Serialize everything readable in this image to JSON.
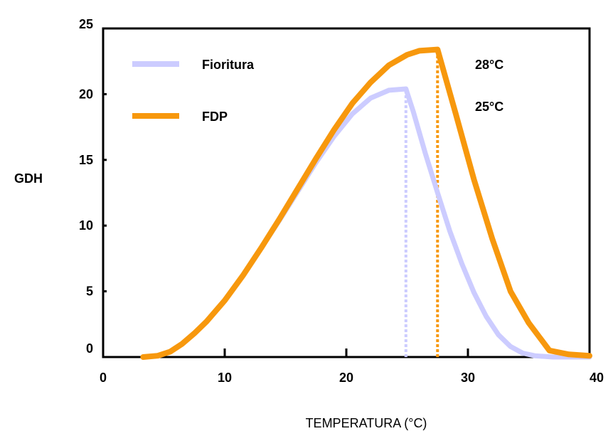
{
  "chart_data": {
    "type": "line",
    "title": "",
    "xlabel": "TEMPERATURA (°C)",
    "ylabel": "GDH",
    "xlim": [
      0,
      40
    ],
    "ylim": [
      0,
      25
    ],
    "xticks": [
      0,
      10,
      20,
      30,
      40
    ],
    "yticks": [
      0,
      5,
      10,
      15,
      20,
      25
    ],
    "grid": false,
    "legend": "top-left",
    "series": [
      {
        "name": "Fioritura",
        "color": "#ccccff",
        "x": [
          3.3,
          4.5,
          5.5,
          6.5,
          7.5,
          8.5,
          10,
          11.5,
          13,
          14.5,
          16,
          17.5,
          19,
          20.5,
          22,
          23.5,
          24.9,
          25.5,
          26.5,
          27.5,
          28.5,
          29.5,
          30.5,
          31.5,
          32.5,
          33.5,
          34.5,
          35.5,
          37,
          38.5,
          40
        ],
        "y": [
          0,
          0.1,
          0.4,
          1.0,
          1.8,
          2.7,
          4.3,
          6.2,
          8.3,
          10.4,
          12.6,
          14.8,
          16.8,
          18.5,
          19.7,
          20.3,
          20.4,
          18.7,
          15.5,
          12.5,
          9.6,
          7.1,
          4.9,
          3.1,
          1.7,
          0.8,
          0.3,
          0.1,
          0,
          0,
          0
        ]
      },
      {
        "name": "FDP",
        "color": "#f7980d",
        "x": [
          3.3,
          4.5,
          5.5,
          6.5,
          7.5,
          8.5,
          10,
          11.5,
          13,
          14.5,
          16,
          17.5,
          19,
          20.5,
          22,
          23.5,
          25,
          26,
          27.5,
          29,
          30.5,
          32,
          33.5,
          35,
          36.7,
          38.3,
          40
        ],
        "y": [
          0,
          0.1,
          0.4,
          1.0,
          1.8,
          2.7,
          4.3,
          6.2,
          8.3,
          10.5,
          12.8,
          15.1,
          17.3,
          19.3,
          20.9,
          22.2,
          23.0,
          23.3,
          23.4,
          18.5,
          13.5,
          9.0,
          5.0,
          2.6,
          0.5,
          0.2,
          0.1
        ]
      }
    ],
    "vlines": [
      {
        "x": 24.9,
        "series": "Fioritura",
        "style": "dotted"
      },
      {
        "x": 27.5,
        "series": "FDP",
        "style": "dotted"
      }
    ],
    "annotations": [
      {
        "text": "28°C",
        "x": 30,
        "y": 22.3
      },
      {
        "text": "25°C",
        "x": 30,
        "y": 19.1
      }
    ]
  }
}
